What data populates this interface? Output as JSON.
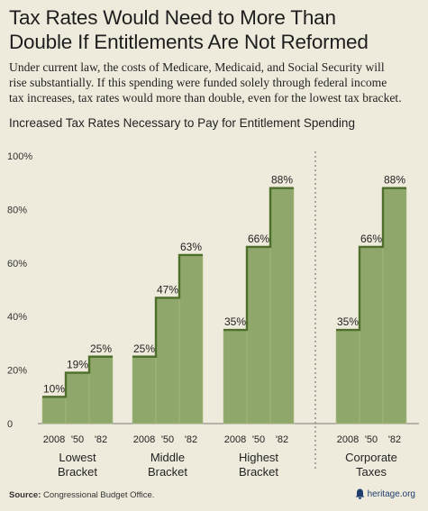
{
  "header": {
    "title_line1": "Tax Rates Would Need to More Than",
    "title_line2": "Double If Entitlements Are Not Reformed",
    "subtitle_lines": [
      "Under current law, the costs of Medicare, Medicaid, and Social Security will",
      "rise substantially. If this spending were funded solely through federal income",
      "tax increases, tax rates would more than double, even for the lowest tax bracket."
    ]
  },
  "chart_data": {
    "type": "bar",
    "title": "Increased Tax Rates Necessary to Pay for Entitlement Spending",
    "ylim": [
      0,
      100
    ],
    "yticks": [
      "0",
      "20%",
      "40%",
      "60%",
      "80%",
      "100%"
    ],
    "ytick_values": [
      0,
      20,
      40,
      60,
      80,
      100
    ],
    "years": [
      "2008",
      "'50",
      "'82"
    ],
    "groups": [
      {
        "name_lines": [
          "Lowest",
          "Bracket"
        ],
        "values": [
          10,
          19,
          25
        ],
        "labels": [
          "10%",
          "19%",
          "25%"
        ]
      },
      {
        "name_lines": [
          "Middle",
          "Bracket"
        ],
        "values": [
          25,
          47,
          63
        ],
        "labels": [
          "25%",
          "47%",
          "63%"
        ]
      },
      {
        "name_lines": [
          "Highest",
          "Bracket"
        ],
        "values": [
          35,
          66,
          88
        ],
        "labels": [
          "35%",
          "66%",
          "88%"
        ]
      },
      {
        "name_lines": [
          "Corporate",
          "Taxes"
        ],
        "values": [
          35,
          66,
          88
        ],
        "labels": [
          "35%",
          "66%",
          "88%"
        ]
      }
    ],
    "grid": false,
    "colors": {
      "bar": "#8fa76a",
      "bar_light": "#a9bd87",
      "step": "#4e6e2c",
      "divider": "#888888"
    }
  },
  "footer": {
    "source_label": "Source:",
    "source_text": "Congressional Budget Office.",
    "brand": "heritage.org"
  }
}
